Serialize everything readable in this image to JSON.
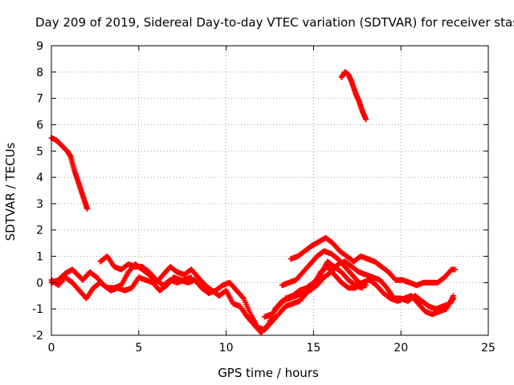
{
  "chart_data": {
    "type": "scatter",
    "title": "Day 209 of 2019, Sidereal Day-to-day VTEC variation (SDTVAR) for receiver stas",
    "xlabel": "GPS time / hours",
    "ylabel": "SDTVAR / TECUs",
    "xlim": [
      0,
      25
    ],
    "ylim": [
      -2,
      9
    ],
    "xticks": [
      0,
      5,
      10,
      15,
      20,
      25
    ],
    "yticks": [
      -2,
      -1,
      0,
      1,
      2,
      3,
      4,
      5,
      6,
      7,
      8,
      9
    ],
    "grid": true,
    "marker": "+",
    "color": "#ff0000",
    "series": [
      {
        "name": "trace-1",
        "points": [
          [
            0,
            5.5
          ],
          [
            0.3,
            5.4
          ],
          [
            0.6,
            5.2
          ],
          [
            0.9,
            5.0
          ],
          [
            1.1,
            4.8
          ],
          [
            1.3,
            4.3
          ],
          [
            1.5,
            3.9
          ],
          [
            1.7,
            3.5
          ],
          [
            1.9,
            3.1
          ],
          [
            2.05,
            2.8
          ]
        ]
      },
      {
        "name": "trace-2",
        "points": [
          [
            16.6,
            7.8
          ],
          [
            16.8,
            8.0
          ],
          [
            17.0,
            7.9
          ],
          [
            17.2,
            7.6
          ],
          [
            17.4,
            7.2
          ],
          [
            17.6,
            6.9
          ],
          [
            17.8,
            6.5
          ],
          [
            18.0,
            6.2
          ]
        ]
      },
      {
        "name": "trace-3",
        "points": [
          [
            0,
            0.0
          ],
          [
            0.4,
            0.1
          ],
          [
            0.8,
            0.35
          ],
          [
            1.2,
            0.5
          ],
          [
            1.5,
            0.3
          ],
          [
            1.8,
            0.1
          ],
          [
            2.2,
            0.4
          ],
          [
            2.6,
            0.2
          ],
          [
            3.0,
            -0.1
          ],
          [
            3.4,
            -0.3
          ],
          [
            3.8,
            -0.2
          ],
          [
            4.2,
            -0.3
          ],
          [
            4.6,
            -0.2
          ],
          [
            5.0,
            0.2
          ],
          [
            5.4,
            0.1
          ],
          [
            5.8,
            0.0
          ],
          [
            6.2,
            -0.3
          ],
          [
            6.6,
            -0.1
          ],
          [
            7.0,
            0.2
          ],
          [
            7.4,
            0.1
          ],
          [
            7.8,
            0.0
          ],
          [
            8.2,
            0.1
          ],
          [
            8.6,
            -0.2
          ],
          [
            9.0,
            -0.4
          ],
          [
            9.4,
            -0.3
          ],
          [
            9.8,
            -0.1
          ],
          [
            10.2,
            0.0
          ],
          [
            10.6,
            -0.3
          ],
          [
            11.0,
            -0.6
          ],
          [
            11.4,
            -1.2
          ],
          [
            11.8,
            -1.7
          ],
          [
            12.2,
            -1.8
          ],
          [
            12.6,
            -1.5
          ],
          [
            13.0,
            -1.2
          ],
          [
            13.4,
            -0.9
          ],
          [
            13.8,
            -0.8
          ],
          [
            14.2,
            -0.7
          ],
          [
            14.6,
            -0.4
          ],
          [
            15.0,
            -0.1
          ],
          [
            15.4,
            0.4
          ],
          [
            15.8,
            0.6
          ],
          [
            16.2,
            0.3
          ],
          [
            16.6,
            0.0
          ],
          [
            17.0,
            -0.2
          ],
          [
            17.4,
            -0.2
          ],
          [
            17.8,
            0.0
          ],
          [
            18.2,
            0.1
          ],
          [
            18.6,
            -0.1
          ],
          [
            19.0,
            -0.4
          ],
          [
            19.4,
            -0.6
          ],
          [
            19.8,
            -0.7
          ],
          [
            20.2,
            -0.6
          ],
          [
            20.6,
            -0.5
          ],
          [
            21.0,
            -0.8
          ],
          [
            21.4,
            -1.1
          ],
          [
            21.8,
            -1.2
          ],
          [
            22.2,
            -1.1
          ],
          [
            22.6,
            -1.0
          ],
          [
            23.0,
            -0.5
          ]
        ]
      },
      {
        "name": "trace-4",
        "points": [
          [
            0,
            0.1
          ],
          [
            0.4,
            -0.1
          ],
          [
            0.8,
            0.2
          ],
          [
            1.2,
            0.0
          ],
          [
            1.6,
            -0.3
          ],
          [
            2.0,
            -0.6
          ],
          [
            2.4,
            -0.2
          ],
          [
            2.8,
            0.0
          ],
          [
            3.2,
            -0.2
          ],
          [
            3.6,
            -0.2
          ],
          [
            4.0,
            -0.1
          ],
          [
            4.4,
            0.4
          ],
          [
            4.8,
            0.7
          ],
          [
            5.2,
            0.5
          ],
          [
            5.6,
            0.3
          ],
          [
            6.0,
            0.0
          ],
          [
            6.4,
            0.3
          ],
          [
            6.8,
            0.6
          ],
          [
            7.2,
            0.4
          ],
          [
            7.6,
            0.3
          ],
          [
            8.0,
            0.5
          ],
          [
            8.4,
            0.2
          ],
          [
            8.8,
            -0.1
          ],
          [
            9.2,
            -0.3
          ],
          [
            9.6,
            -0.5
          ],
          [
            10.0,
            -0.3
          ],
          [
            10.4,
            -0.8
          ],
          [
            10.8,
            -0.9
          ],
          [
            11.2,
            -1.3
          ],
          [
            11.6,
            -1.6
          ],
          [
            12.0,
            -1.9
          ],
          [
            12.4,
            -1.6
          ],
          [
            12.8,
            -1.0
          ],
          [
            13.2,
            -0.7
          ],
          [
            13.6,
            -0.6
          ],
          [
            14.0,
            -0.5
          ],
          [
            14.4,
            -0.4
          ],
          [
            14.8,
            -0.3
          ],
          [
            15.2,
            -0.1
          ],
          [
            15.6,
            0.2
          ],
          [
            16.0,
            0.4
          ],
          [
            16.4,
            0.7
          ],
          [
            16.8,
            0.8
          ],
          [
            17.2,
            0.6
          ],
          [
            17.6,
            0.4
          ],
          [
            18.0,
            0.3
          ],
          [
            18.4,
            0.2
          ],
          [
            18.8,
            0.1
          ],
          [
            19.2,
            -0.2
          ],
          [
            19.6,
            -0.6
          ],
          [
            20.0,
            -0.6
          ],
          [
            20.4,
            -0.7
          ],
          [
            20.8,
            -0.5
          ],
          [
            21.2,
            -0.7
          ],
          [
            21.6,
            -0.9
          ],
          [
            22.0,
            -1.0
          ],
          [
            22.4,
            -0.9
          ],
          [
            22.8,
            -0.8
          ],
          [
            23.0,
            -0.6
          ]
        ]
      },
      {
        "name": "trace-5",
        "points": [
          [
            2.8,
            0.8
          ],
          [
            3.2,
            1.0
          ],
          [
            3.6,
            0.6
          ],
          [
            4.0,
            0.5
          ],
          [
            4.4,
            0.7
          ],
          [
            4.8,
            0.6
          ],
          [
            5.2,
            0.6
          ],
          [
            5.6,
            0.4
          ],
          [
            6.0,
            0.1
          ],
          [
            6.4,
            -0.1
          ],
          [
            6.8,
            0.1
          ],
          [
            7.2,
            0.0
          ],
          [
            7.6,
            0.1
          ],
          [
            8.0,
            0.2
          ]
        ]
      },
      {
        "name": "trace-6",
        "points": [
          [
            13.7,
            0.9
          ],
          [
            14.1,
            1.0
          ],
          [
            14.5,
            1.2
          ],
          [
            14.9,
            1.4
          ],
          [
            15.3,
            1.55
          ],
          [
            15.7,
            1.7
          ],
          [
            16.1,
            1.5
          ],
          [
            16.5,
            1.2
          ],
          [
            16.9,
            1.0
          ],
          [
            17.3,
            0.8
          ],
          [
            17.7,
            1.0
          ],
          [
            18.1,
            0.9
          ],
          [
            18.5,
            0.8
          ],
          [
            18.9,
            0.6
          ],
          [
            19.3,
            0.4
          ],
          [
            19.7,
            0.1
          ],
          [
            20.1,
            0.1
          ],
          [
            20.5,
            0.0
          ],
          [
            20.9,
            -0.1
          ],
          [
            21.3,
            0.0
          ],
          [
            21.7,
            0.0
          ],
          [
            22.1,
            0.0
          ],
          [
            22.5,
            0.2
          ],
          [
            22.9,
            0.5
          ],
          [
            23.1,
            0.5
          ]
        ]
      },
      {
        "name": "trace-7",
        "points": [
          [
            13.2,
            -0.1
          ],
          [
            13.6,
            0.0
          ],
          [
            14.0,
            0.1
          ],
          [
            14.4,
            0.4
          ],
          [
            14.8,
            0.7
          ],
          [
            15.2,
            1.0
          ],
          [
            15.6,
            1.2
          ],
          [
            16.0,
            1.1
          ],
          [
            16.4,
            0.9
          ],
          [
            16.8,
            0.6
          ],
          [
            17.2,
            0.3
          ],
          [
            17.6,
            0.0
          ],
          [
            18.0,
            -0.1
          ]
        ]
      },
      {
        "name": "trace-8",
        "points": [
          [
            12.2,
            -1.3
          ],
          [
            12.6,
            -1.2
          ],
          [
            13.0,
            -0.9
          ],
          [
            13.4,
            -0.6
          ],
          [
            13.8,
            -0.5
          ],
          [
            14.2,
            -0.3
          ],
          [
            14.6,
            -0.2
          ],
          [
            15.0,
            0.0
          ],
          [
            15.4,
            0.3
          ],
          [
            15.8,
            0.8
          ],
          [
            16.2,
            0.6
          ],
          [
            16.6,
            0.4
          ],
          [
            17.0,
            0.1
          ],
          [
            17.4,
            -0.1
          ],
          [
            17.8,
            -0.2
          ]
        ]
      }
    ]
  }
}
